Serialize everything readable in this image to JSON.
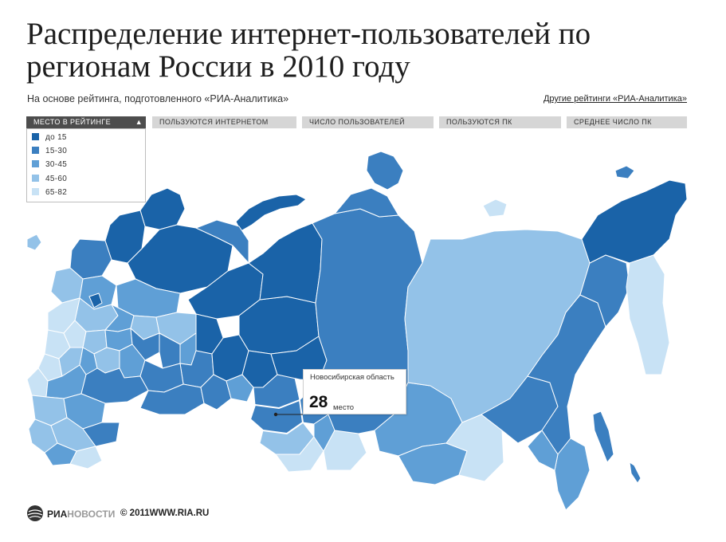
{
  "title": "Распределение интернет-пользователей по регионам России в 2010 году",
  "subtitle": "На основе рейтинга, подготовленного «РИА-Аналитика»",
  "other_ratings_link": "Другие рейтинги «РИА-Аналитика»",
  "tabs": [
    {
      "label": "МЕСТО В РЕЙТИНГЕ",
      "active": true
    },
    {
      "label": "ПОЛЬЗУЮТСЯ ИНТЕРНЕТОМ",
      "active": false
    },
    {
      "label": "ЧИСЛО ПОЛЬЗОВАТЕЛЕЙ",
      "active": false
    },
    {
      "label": "ПОЛЬЗУЮТСЯ ПК",
      "active": false
    },
    {
      "label": "СРЕДНЕЕ ЧИСЛО ПК",
      "active": false
    }
  ],
  "legend": [
    {
      "label": "до 15",
      "color": "#1a63a8"
    },
    {
      "label": "15-30",
      "color": "#3b7fc0"
    },
    {
      "label": "30-45",
      "color": "#5f9fd6"
    },
    {
      "label": "45-60",
      "color": "#93c2e8"
    },
    {
      "label": "65-82",
      "color": "#c8e2f5"
    }
  ],
  "colors": {
    "border": "#ffffff",
    "background": "#ffffff"
  },
  "callout": {
    "region": "Новосибирская область",
    "rank": "28",
    "unit": "место"
  },
  "footer": {
    "brand_main": "РИА",
    "brand_light": "НОВОСТИ",
    "copyright": "© 2011WWW.RIA.RU",
    "logo_icon": "globe-icon"
  }
}
